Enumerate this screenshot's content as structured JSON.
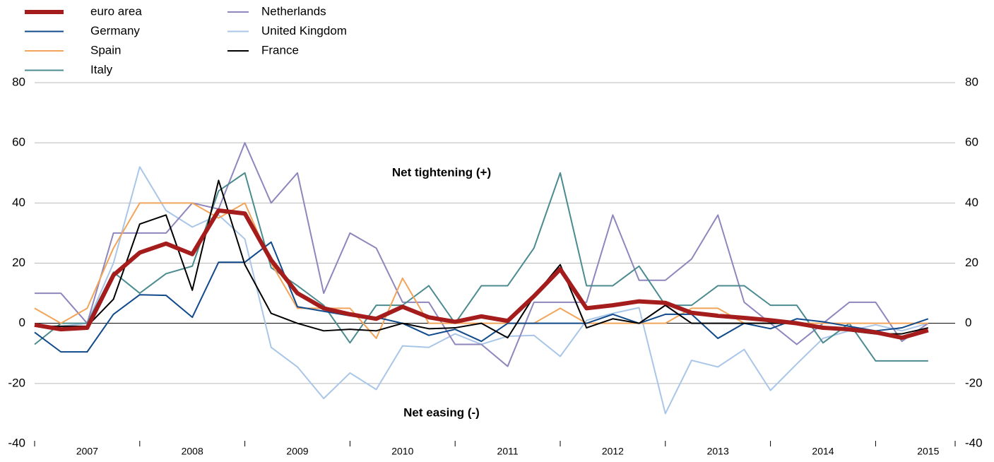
{
  "chart_data": {
    "type": "line",
    "annotations": [
      "Net tightening (+)",
      "Net easing (-)"
    ],
    "year_labels": [
      "2007",
      "2008",
      "2009",
      "2010",
      "2011",
      "2012",
      "2013",
      "2014",
      "2015"
    ],
    "ylim": [
      -40,
      80
    ],
    "yticks": [
      -40,
      -20,
      0,
      20,
      40,
      60,
      80
    ],
    "y2lim": [
      -40,
      80
    ],
    "y2ticks": [
      -40,
      -20,
      0,
      20,
      40,
      60,
      80
    ],
    "grid": true,
    "series": [
      {
        "name": "euro area",
        "color": "#a51c1c",
        "width": 6,
        "values": [
          -0.5,
          -2,
          -1.5,
          16,
          23.5,
          26.5,
          23,
          37.5,
          36.5,
          21,
          10,
          5,
          3,
          1.5,
          5.5,
          2,
          0.5,
          2.3,
          0.8,
          9,
          18,
          5,
          6,
          7.3,
          6.8,
          3.5,
          2.5,
          1.8,
          1,
          0,
          -1.5,
          -2,
          -3,
          -4.8,
          -2.3
        ]
      },
      {
        "name": "Germany",
        "color": "#114a8b",
        "width": 2,
        "values": [
          -3,
          -9.5,
          -9.5,
          3,
          9.5,
          9.3,
          2,
          20.3,
          20.3,
          27,
          5.5,
          4,
          2.5,
          2,
          0,
          -4,
          -2,
          -6,
          0,
          0,
          0,
          0,
          3,
          0,
          3,
          3,
          -5,
          0,
          -1.8,
          1.5,
          0.5,
          -1,
          -2.5,
          -1.5,
          1.5
        ]
      },
      {
        "name": "Spain",
        "color": "#f2a55a",
        "width": 2,
        "values": [
          5,
          0,
          5,
          25,
          40,
          40,
          40,
          35,
          40,
          20,
          5,
          5,
          5,
          -5,
          15,
          0,
          0,
          0,
          0,
          0,
          5,
          0,
          0,
          0,
          0,
          5,
          5,
          0,
          0,
          0,
          0,
          0,
          0,
          0,
          0
        ]
      },
      {
        "name": "Italy",
        "color": "#4b8b8f",
        "width": 2,
        "values": [
          -7,
          0,
          0,
          17,
          10,
          16.5,
          19,
          44,
          50,
          18.5,
          12.5,
          6,
          -6.5,
          6,
          6,
          12.5,
          0,
          12.5,
          12.5,
          25,
          50,
          12.5,
          12.5,
          19,
          6,
          6,
          12.5,
          12.5,
          6,
          6,
          -6.5,
          0,
          -12.5,
          -12.5,
          -12.5
        ]
      },
      {
        "name": "Netherlands",
        "color": "#8e86bd",
        "width": 2,
        "values": [
          10,
          10,
          0,
          30,
          30,
          30,
          40,
          38,
          60,
          40,
          50,
          10,
          30,
          25,
          7,
          7,
          -7,
          -7,
          -14.3,
          7,
          7,
          7,
          36,
          14.3,
          14.3,
          21.4,
          36,
          7,
          0,
          -7,
          0,
          7,
          7,
          -6,
          0
        ]
      },
      {
        "name": "United Kingdom",
        "color": "#a9c6e8",
        "width": 2,
        "values": [
          -1,
          -1,
          0,
          20,
          52,
          37.5,
          32,
          36,
          28,
          -8,
          -14.5,
          -25,
          -16.5,
          -22,
          -7.5,
          -8,
          -3.5,
          -7,
          -4.3,
          -4,
          -11,
          1,
          3.3,
          5.2,
          -30,
          -12.3,
          -14.5,
          -8.7,
          -22.3,
          -13.5,
          -5,
          -2.5,
          -0.5,
          -2.5,
          0
        ]
      },
      {
        "name": "France",
        "color": "#000000",
        "width": 2,
        "values": [
          -1,
          -1,
          -1,
          8,
          33,
          36,
          11,
          47.5,
          19.5,
          3.3,
          0,
          -2.5,
          -2,
          -2.5,
          0,
          -1.8,
          -1.5,
          0,
          -4.8,
          9,
          19.5,
          -1.5,
          1.5,
          0,
          6,
          0,
          0,
          0,
          0,
          0,
          -1,
          -2.5,
          -3.5,
          -3.5,
          -1.5
        ]
      }
    ]
  }
}
